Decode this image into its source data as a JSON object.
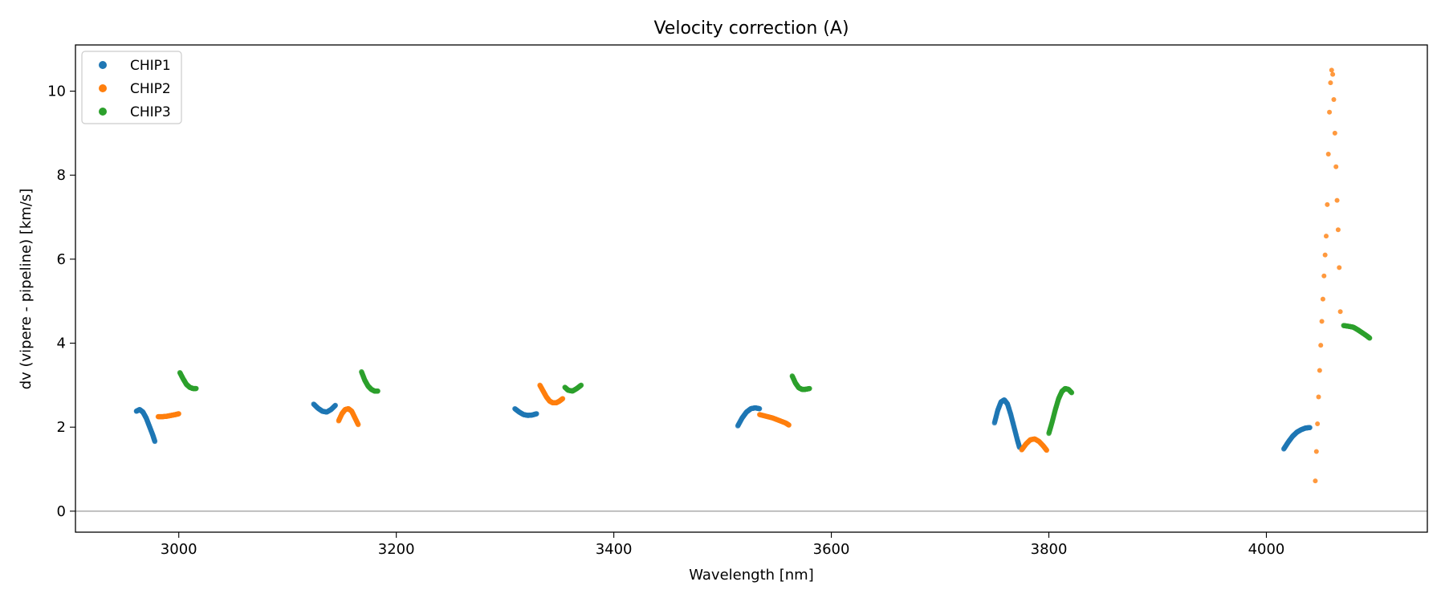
{
  "chart_data": {
    "type": "scatter",
    "title": "Velocity correction (A)",
    "xlabel": "Wavelength [nm]",
    "ylabel": "dv (vipere - pipeline) [km/s]",
    "xlim": [
      2905,
      4148
    ],
    "ylim": [
      -0.5,
      11.1
    ],
    "xticks": [
      3000,
      3200,
      3400,
      3600,
      3800,
      4000
    ],
    "yticks": [
      0,
      2,
      4,
      6,
      8,
      10
    ],
    "hline": 0,
    "legend_position": "top-left",
    "series": [
      {
        "name": "CHIP1",
        "color": "#1f77b4",
        "segments": [
          {
            "x": [
              2961,
              2964,
              2967,
              2970,
              2973,
              2976,
              2978
            ],
            "y": [
              2.38,
              2.42,
              2.36,
              2.22,
              2.02,
              1.82,
              1.66
            ]
          },
          {
            "x": [
              3124,
              3128,
              3132,
              3136,
              3140,
              3144
            ],
            "y": [
              2.55,
              2.45,
              2.38,
              2.36,
              2.42,
              2.52
            ]
          },
          {
            "x": [
              3309,
              3313,
              3317,
              3321,
              3325,
              3329
            ],
            "y": [
              2.44,
              2.36,
              2.3,
              2.28,
              2.29,
              2.32
            ]
          },
          {
            "x": [
              3514,
              3518,
              3522,
              3526,
              3530,
              3534
            ],
            "y": [
              2.03,
              2.22,
              2.36,
              2.44,
              2.46,
              2.44
            ]
          },
          {
            "x": [
              3750,
              3753,
              3756,
              3759,
              3762,
              3765,
              3768,
              3771,
              3773
            ],
            "y": [
              2.1,
              2.4,
              2.6,
              2.65,
              2.55,
              2.3,
              2.0,
              1.7,
              1.52
            ]
          },
          {
            "x": [
              4016,
              4020,
              4024,
              4028,
              4032,
              4036,
              4040
            ],
            "y": [
              1.48,
              1.64,
              1.78,
              1.88,
              1.94,
              1.98,
              1.99
            ]
          }
        ]
      },
      {
        "name": "CHIP2",
        "color": "#ff7f0e",
        "segments": [
          {
            "x": [
              2981,
              2985,
              2989,
              2993,
              2997,
              3000
            ],
            "y": [
              2.25,
              2.25,
              2.26,
              2.28,
              2.3,
              2.32
            ]
          },
          {
            "x": [
              3147,
              3150,
              3153,
              3156,
              3159,
              3162,
              3165
            ],
            "y": [
              2.15,
              2.32,
              2.42,
              2.44,
              2.38,
              2.22,
              2.06
            ]
          },
          {
            "x": [
              3332,
              3335,
              3338,
              3341,
              3344,
              3347,
              3350,
              3353
            ],
            "y": [
              3.0,
              2.86,
              2.72,
              2.62,
              2.58,
              2.58,
              2.62,
              2.68
            ]
          },
          {
            "x": [
              3534,
              3540,
              3546,
              3552,
              3558,
              3561
            ],
            "y": [
              2.3,
              2.26,
              2.22,
              2.16,
              2.1,
              2.05
            ]
          },
          {
            "x": [
              3775,
              3779,
              3783,
              3787,
              3791,
              3795,
              3798
            ],
            "y": [
              1.46,
              1.6,
              1.7,
              1.72,
              1.66,
              1.55,
              1.45
            ]
          },
          {
            "x": [
              4045,
              4046,
              4047,
              4048,
              4049,
              4050,
              4051,
              4052,
              4053,
              4054,
              4055,
              4056,
              4057,
              4058,
              4059,
              4060,
              4061,
              4062,
              4063,
              4064,
              4065,
              4066,
              4067,
              4068
            ],
            "y": [
              0.72,
              1.42,
              2.08,
              2.72,
              3.35,
              3.95,
              4.52,
              5.05,
              5.6,
              6.1,
              6.55,
              7.3,
              8.5,
              9.5,
              10.2,
              10.5,
              10.4,
              9.8,
              9.0,
              8.2,
              7.4,
              6.7,
              5.8,
              4.75
            ]
          }
        ]
      },
      {
        "name": "CHIP3",
        "color": "#2ca02c",
        "segments": [
          {
            "x": [
              3001,
              3004,
              3007,
              3010,
              3013,
              3016
            ],
            "y": [
              3.3,
              3.15,
              3.02,
              2.95,
              2.92,
              2.92
            ]
          },
          {
            "x": [
              3168,
              3171,
              3174,
              3177,
              3180,
              3183
            ],
            "y": [
              3.32,
              3.12,
              2.98,
              2.9,
              2.86,
              2.86
            ]
          },
          {
            "x": [
              3355,
              3358,
              3362,
              3366,
              3370
            ],
            "y": [
              2.95,
              2.88,
              2.86,
              2.92,
              3.0
            ]
          },
          {
            "x": [
              3564,
              3567,
              3570,
              3573,
              3576,
              3580
            ],
            "y": [
              3.22,
              3.05,
              2.94,
              2.9,
              2.9,
              2.92
            ]
          },
          {
            "x": [
              3800,
              3803,
              3806,
              3809,
              3812,
              3815,
              3818,
              3821
            ],
            "y": [
              1.85,
              2.12,
              2.42,
              2.68,
              2.85,
              2.92,
              2.9,
              2.82
            ]
          },
          {
            "x": [
              4071,
              4076,
              4080,
              4084,
              4088,
              4092,
              4095
            ],
            "y": [
              4.42,
              4.4,
              4.38,
              4.32,
              4.25,
              4.18,
              4.12
            ]
          }
        ]
      }
    ]
  }
}
